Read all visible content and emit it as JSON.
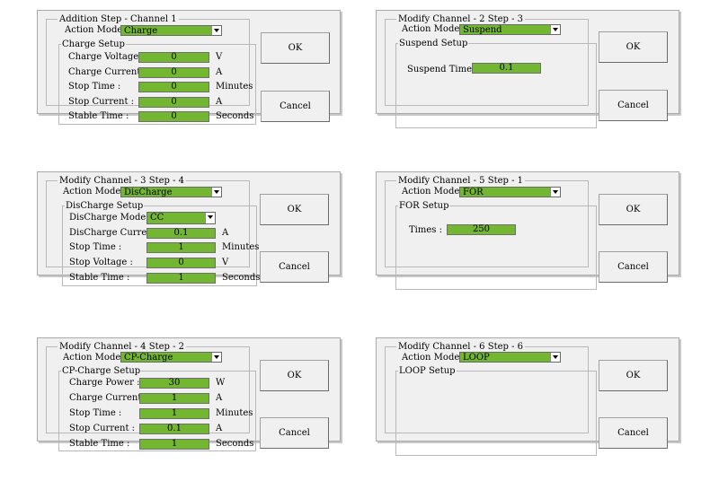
{
  "common": {
    "action_mode_label": "Action Mode :",
    "ok": "OK",
    "cancel": "Cancel"
  },
  "panels": [
    {
      "title": "Addition Step - Channel 1",
      "action_mode": "Charge",
      "group_title": "Charge Setup",
      "rows": [
        {
          "label": "Charge Voltage :",
          "value": "0",
          "unit": "V"
        },
        {
          "label": "Charge Current :",
          "value": "0",
          "unit": "A"
        },
        {
          "label": "Stop Time :",
          "value": "0",
          "unit": "Minutes"
        },
        {
          "label": "Stop Current :",
          "value": "0",
          "unit": "A"
        },
        {
          "label": "Stable Time :",
          "value": "0",
          "unit": "Seconds"
        }
      ]
    },
    {
      "title": "Modify Channel - 2 Step - 3",
      "action_mode": "Suspend",
      "group_title": "Suspend Setup",
      "rows": [
        {
          "label": "Suspend Time :",
          "value": "0.1"
        }
      ]
    },
    {
      "title": "Modify Channel - 3 Step - 4",
      "action_mode": "DisCharge",
      "group_title": "DisCharge Setup",
      "mode_label": "DisCharge Mode :",
      "mode_value": "CC",
      "rows": [
        {
          "label": "DisCharge Current :",
          "value": "0.1",
          "unit": "A"
        },
        {
          "label": "Stop Time :",
          "value": "1",
          "unit": "Minutes"
        },
        {
          "label": "Stop Voltage :",
          "value": "0",
          "unit": "V"
        },
        {
          "label": "Stable Time :",
          "value": "1",
          "unit": "Seconds"
        }
      ]
    },
    {
      "title": "Modify Channel - 5 Step - 1",
      "action_mode": "FOR",
      "group_title": "FOR Setup",
      "rows": [
        {
          "label": "Times :",
          "value": "250"
        }
      ]
    },
    {
      "title": "Modify Channel - 4 Step - 2",
      "action_mode": "CP-Charge",
      "group_title": "CP-Charge Setup",
      "rows": [
        {
          "label": "Charge Power :",
          "value": "30",
          "unit": "W"
        },
        {
          "label": "Charge Current :",
          "value": "1",
          "unit": "A"
        },
        {
          "label": "Stop Time :",
          "value": "1",
          "unit": "Minutes"
        },
        {
          "label": "Stop Current :",
          "value": "0.1",
          "unit": "A"
        },
        {
          "label": "Stable Time :",
          "value": "1",
          "unit": "Seconds"
        }
      ]
    },
    {
      "title": "Modify Channel - 6 Step - 6",
      "action_mode": "LOOP",
      "group_title": "LOOP Setup",
      "rows": []
    }
  ],
  "colors": {
    "field_green": "#73b632",
    "dialog_bg": "#f0f0f0"
  }
}
